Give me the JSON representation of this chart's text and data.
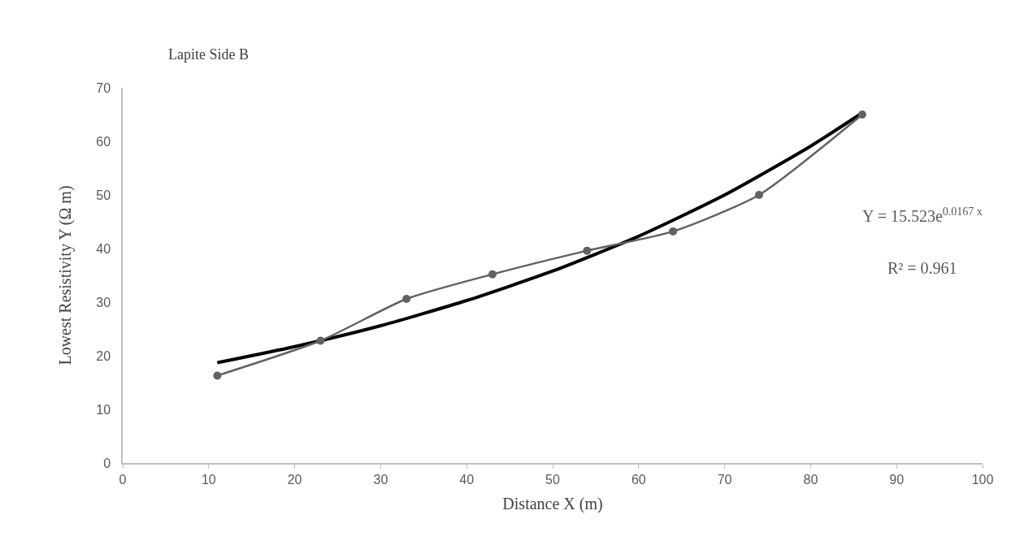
{
  "chart_data": {
    "type": "line",
    "title": "Lapite Side B",
    "xlabel": "Distance X (m)",
    "ylabel": "Lowest Resistivity Y (Ω m)",
    "x": [
      11,
      23,
      33,
      43,
      54,
      64,
      74,
      86
    ],
    "series": [
      {
        "color": "#626262",
        "marker": "circle",
        "values": [
          16.3,
          22.8,
          30.6,
          35.2,
          39.6,
          43.2,
          50.0,
          65.0
        ]
      },
      {
        "color": "#000000",
        "marker": "none",
        "x": [
          11,
          20,
          30,
          40,
          50,
          60,
          70,
          80,
          86
        ],
        "values": [
          18.7,
          21.7,
          25.6,
          30.3,
          35.8,
          42.3,
          50.0,
          59.1,
          65.3
        ]
      }
    ],
    "annotations": [
      "Y = 15.523e$^{0.0167 x}$",
      "R² = 0.961"
    ],
    "xlim": [
      0,
      100
    ],
    "xticks": [
      0,
      10,
      20,
      30,
      40,
      50,
      60,
      70,
      80,
      90,
      100
    ],
    "ylim": [
      0,
      70
    ],
    "yticks": [
      0,
      10,
      20,
      30,
      40,
      50,
      60,
      70
    ]
  }
}
